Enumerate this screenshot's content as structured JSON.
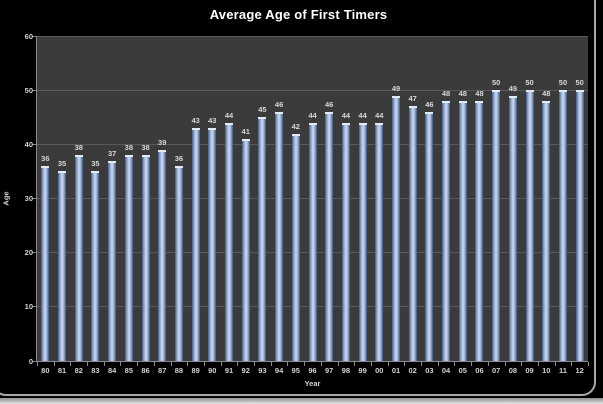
{
  "frame": {
    "border_color": "#a8a8a8"
  },
  "chart_data": {
    "type": "bar",
    "title": "Average Age of First Timers",
    "xlabel": "Year",
    "ylabel": "Age",
    "categories": [
      "80",
      "81",
      "82",
      "83",
      "84",
      "85",
      "86",
      "87",
      "88",
      "89",
      "90",
      "91",
      "92",
      "93",
      "94",
      "95",
      "96",
      "97",
      "98",
      "99",
      "00",
      "01",
      "02",
      "03",
      "04",
      "05",
      "06",
      "07",
      "08",
      "09",
      "10",
      "11",
      "12"
    ],
    "values": [
      36,
      35,
      38,
      35,
      37,
      38,
      38,
      39,
      36,
      43,
      43,
      44,
      41,
      45,
      46,
      42,
      44,
      46,
      44,
      44,
      44,
      49,
      47,
      46,
      48,
      48,
      48,
      50,
      49,
      50,
      48,
      50,
      50
    ],
    "ylim": [
      0,
      60
    ],
    "ytick_step": 10,
    "grid": true,
    "legend": "none",
    "data_labels": true,
    "colors": {
      "page_bg": "#000000",
      "plot_bg": "#3b3b3b",
      "gridline": "#5a5a5a",
      "axis_line": "#8a8a8a",
      "text": "#d2d2d2",
      "title_text": "#ffffff",
      "bar_main": "#a9bfe2",
      "bar_edge": "#44567c",
      "bar_highlight": "#cbdaf1",
      "bar_cap": "#e2eaf7"
    }
  }
}
